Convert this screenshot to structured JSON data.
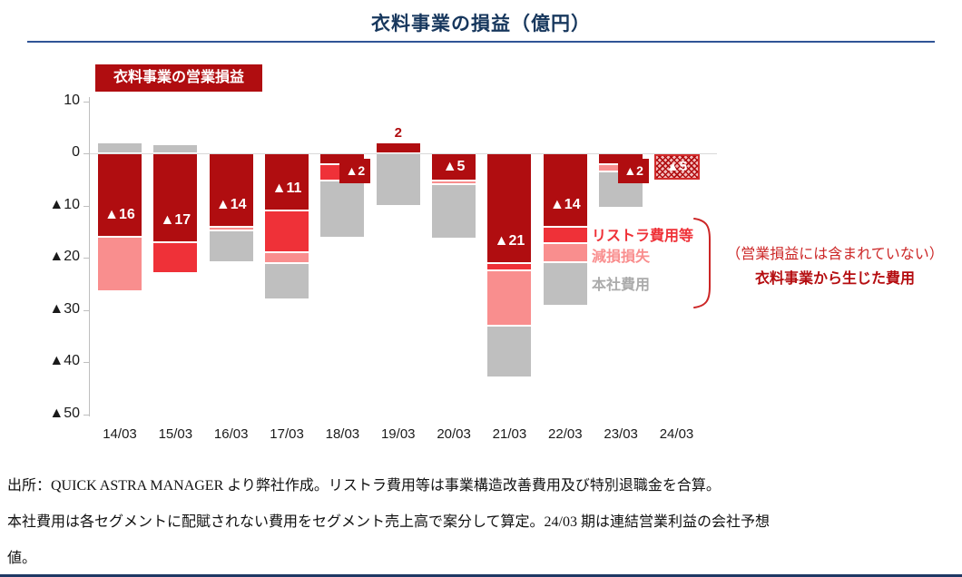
{
  "page": {
    "title": "衣料事業の損益（億円）"
  },
  "colors": {
    "op": "#B00D10",
    "rest": "#EF3138",
    "imp": "#F98E8E",
    "hq": "#BFBFBF",
    "title_navy": "#17375D",
    "rule_navy": "#2F5496",
    "forecast_border": "#D22B2B",
    "annotation_red": "#CC2626",
    "annotation_dark_red": "#B50D10",
    "axis_gray": "#BFBFBF",
    "zero_line_gray": "#D9D9D9"
  },
  "chart_data": {
    "type": "bar",
    "title": "衣料事業の損益（億円）",
    "unit": "億円",
    "operating_label": "衣料事業の営業損益",
    "categories": [
      "14/03",
      "15/03",
      "16/03",
      "17/03",
      "18/03",
      "19/03",
      "20/03",
      "21/03",
      "22/03",
      "23/03",
      "24/03"
    ],
    "ylim": [
      -50,
      10
    ],
    "grid": "zero-line-only",
    "yticks": [
      {
        "v": 10,
        "label": "10"
      },
      {
        "v": 0,
        "label": "0"
      },
      {
        "v": -10,
        "label": "▲10"
      },
      {
        "v": -20,
        "label": "▲20"
      },
      {
        "v": -30,
        "label": "▲30"
      },
      {
        "v": -40,
        "label": "▲40"
      },
      {
        "v": -50,
        "label": "▲50"
      }
    ],
    "stack_order_note": "segments stack downward from zero: operating loss (dark red), restructuring cost (red), impairment loss (pink), headquarters cost (gray); small caps above zero are positive amounts",
    "bars": [
      {
        "cat": "14/03",
        "label": "▲16",
        "label_mode": "inside",
        "operating": -16,
        "pos": {
          "k": "hq",
          "v": 2
        },
        "neg": [
          {
            "k": "op",
            "v": 16
          },
          {
            "k": "imp",
            "v": 10.5
          }
        ]
      },
      {
        "cat": "15/03",
        "label": "▲17",
        "label_mode": "inside",
        "operating": -17,
        "pos": {
          "k": "hq",
          "v": 1.5
        },
        "neg": [
          {
            "k": "op",
            "v": 17
          },
          {
            "k": "rest",
            "v": 6
          }
        ]
      },
      {
        "cat": "16/03",
        "label": "▲14",
        "label_mode": "inside",
        "operating": -14,
        "neg": [
          {
            "k": "op",
            "v": 14
          },
          {
            "k": "imp",
            "v": 0.8
          },
          {
            "k": "hq",
            "v": 6
          }
        ]
      },
      {
        "cat": "17/03",
        "label": "▲11",
        "label_mode": "inside",
        "operating": -11,
        "neg": [
          {
            "k": "op",
            "v": 11
          },
          {
            "k": "rest",
            "v": 8
          },
          {
            "k": "imp",
            "v": 2
          },
          {
            "k": "hq",
            "v": 7
          }
        ]
      },
      {
        "cat": "18/03",
        "label": "▲2",
        "label_mode": "box",
        "operating": -2,
        "neg": [
          {
            "k": "op",
            "v": 2
          },
          {
            "k": "rest",
            "v": 3.2
          },
          {
            "k": "hq",
            "v": 11
          }
        ]
      },
      {
        "cat": "19/03",
        "label": "2",
        "label_mode": "above",
        "operating": 2,
        "pos": {
          "k": "op",
          "v": 2
        },
        "neg": [
          {
            "k": "hq",
            "v": 10
          }
        ]
      },
      {
        "cat": "20/03",
        "label": "▲5",
        "label_mode": "inside",
        "operating": -5,
        "neg": [
          {
            "k": "op",
            "v": 5.3
          },
          {
            "k": "imp",
            "v": 0.6
          },
          {
            "k": "hq",
            "v": 10.5
          }
        ]
      },
      {
        "cat": "21/03",
        "label": "▲21",
        "label_mode": "inside",
        "operating": -21,
        "neg": [
          {
            "k": "op",
            "v": 21
          },
          {
            "k": "rest",
            "v": 1.5
          },
          {
            "k": "imp",
            "v": 10.5
          },
          {
            "k": "hq",
            "v": 10
          }
        ]
      },
      {
        "cat": "22/03",
        "label": "▲14",
        "label_mode": "inside",
        "operating": -14,
        "neg": [
          {
            "k": "op",
            "v": 14
          },
          {
            "k": "rest",
            "v": 3.2
          },
          {
            "k": "imp",
            "v": 3.6
          },
          {
            "k": "hq",
            "v": 8.5
          }
        ]
      },
      {
        "cat": "23/03",
        "label": "▲2",
        "label_mode": "box",
        "operating": -2,
        "neg": [
          {
            "k": "op",
            "v": 2
          },
          {
            "k": "imp",
            "v": 1.5
          },
          {
            "k": "hq",
            "v": 7
          }
        ]
      },
      {
        "cat": "24/03",
        "label": "▲5",
        "label_mode": "forecast",
        "operating": -5,
        "forecast": true,
        "neg": [
          {
            "k": "op_forecast",
            "v": 5.2
          }
        ]
      }
    ],
    "legend": {
      "position": "right-of-22/03-bar",
      "items": [
        {
          "key": "rest",
          "label": "リストラ費用等"
        },
        {
          "key": "imp",
          "label": "減損損失"
        },
        {
          "key": "hq",
          "label": "本社費用"
        }
      ]
    },
    "annotation": {
      "line1": "（営業損益には含まれていない）",
      "line2": "衣料事業から生じた費用"
    }
  },
  "footer": {
    "line1": "出所：QUICK ASTRA MANAGER より弊社作成。リストラ費用等は事業構造改善費用及び特別退職金を合算。",
    "line2": "本社費用は各セグメントに配賦されない費用をセグメント売上高で案分して算定。24/03 期は連結営業利益の会社予想",
    "line3": "値。"
  }
}
